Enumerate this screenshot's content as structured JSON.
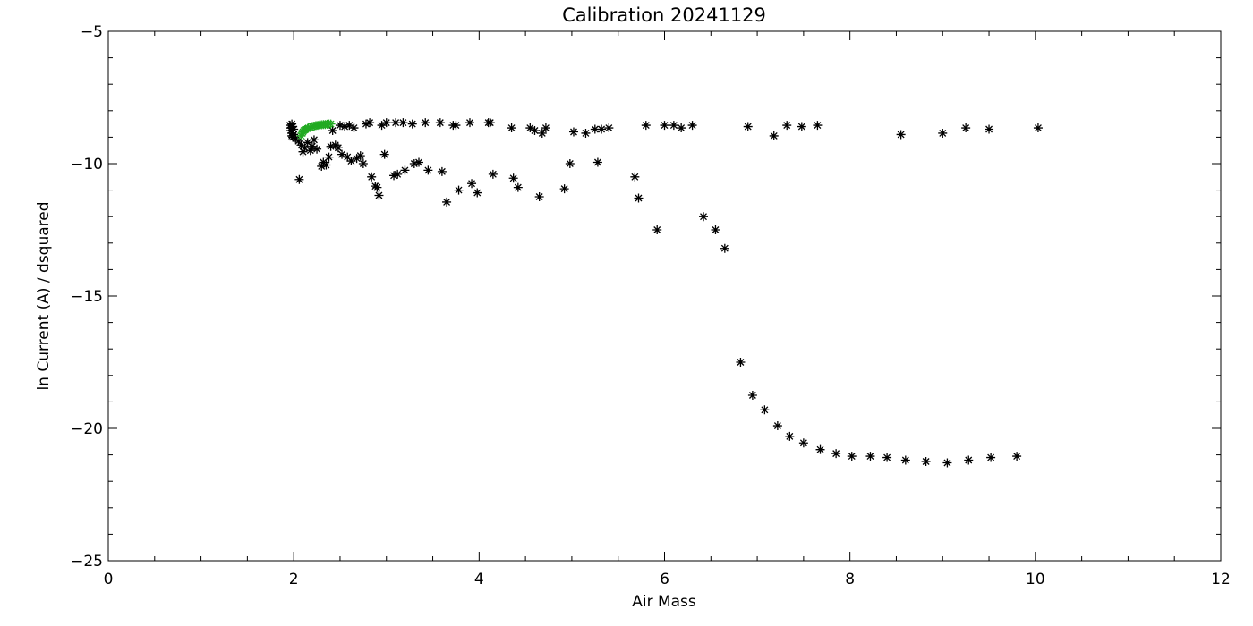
{
  "chart_data": {
    "type": "scatter",
    "title": "Calibration 20241129",
    "xlabel": "Air Mass",
    "ylabel": "ln Current (A) / dsquared",
    "xlim": [
      0,
      12
    ],
    "ylim": [
      -25,
      -5
    ],
    "x_ticks": [
      0,
      2,
      4,
      6,
      8,
      10,
      12
    ],
    "y_ticks": [
      -25,
      -20,
      -15,
      -10,
      -5
    ],
    "x_tick_labels": [
      "0",
      "2",
      "4",
      "6",
      "8",
      "10",
      "12"
    ],
    "y_tick_labels": [
      "−25",
      "−20",
      "−15",
      "−10",
      "−5"
    ],
    "grid": false,
    "marker": "asterisk",
    "series": [
      {
        "color": "#000000",
        "points": [
          [
            1.96,
            -8.55
          ],
          [
            1.97,
            -8.65
          ],
          [
            1.97,
            -8.75
          ],
          [
            1.98,
            -8.85
          ],
          [
            1.98,
            -8.95
          ],
          [
            1.99,
            -9.0
          ],
          [
            1.99,
            -8.6
          ],
          [
            2.0,
            -8.7
          ],
          [
            2.0,
            -8.9
          ],
          [
            1.98,
            -8.5
          ],
          [
            2.02,
            -9.05
          ],
          [
            2.05,
            -9.15
          ],
          [
            2.06,
            -10.6
          ],
          [
            2.08,
            -9.3
          ],
          [
            2.1,
            -9.55
          ],
          [
            2.12,
            -9.4
          ],
          [
            2.15,
            -9.2
          ],
          [
            2.18,
            -9.5
          ],
          [
            2.2,
            -9.35
          ],
          [
            2.22,
            -9.1
          ],
          [
            2.25,
            -9.45
          ],
          [
            2.3,
            -10.1
          ],
          [
            2.32,
            -9.95
          ],
          [
            2.35,
            -10.05
          ],
          [
            2.38,
            -9.75
          ],
          [
            2.4,
            -9.35
          ],
          [
            2.45,
            -9.3
          ],
          [
            2.48,
            -9.4
          ],
          [
            2.42,
            -8.75
          ],
          [
            2.5,
            -8.55
          ],
          [
            2.52,
            -9.65
          ],
          [
            2.55,
            -8.6
          ],
          [
            2.58,
            -9.75
          ],
          [
            2.6,
            -8.55
          ],
          [
            2.62,
            -9.9
          ],
          [
            2.65,
            -8.65
          ],
          [
            2.68,
            -9.8
          ],
          [
            2.72,
            -9.7
          ],
          [
            2.75,
            -10.0
          ],
          [
            2.78,
            -8.5
          ],
          [
            2.82,
            -8.45
          ],
          [
            2.84,
            -10.5
          ],
          [
            2.88,
            -10.85
          ],
          [
            2.9,
            -10.9
          ],
          [
            2.92,
            -11.2
          ],
          [
            2.95,
            -8.55
          ],
          [
            2.98,
            -9.65
          ],
          [
            3.0,
            -8.45
          ],
          [
            3.08,
            -10.45
          ],
          [
            3.1,
            -8.45
          ],
          [
            3.12,
            -10.4
          ],
          [
            3.18,
            -8.45
          ],
          [
            3.2,
            -10.25
          ],
          [
            3.28,
            -8.5
          ],
          [
            3.3,
            -10.0
          ],
          [
            3.35,
            -9.95
          ],
          [
            3.42,
            -8.45
          ],
          [
            3.45,
            -10.25
          ],
          [
            3.58,
            -8.45
          ],
          [
            3.6,
            -10.3
          ],
          [
            3.65,
            -11.45
          ],
          [
            3.72,
            -8.55
          ],
          [
            3.75,
            -8.55
          ],
          [
            3.78,
            -11.0
          ],
          [
            3.9,
            -8.45
          ],
          [
            3.92,
            -10.75
          ],
          [
            3.98,
            -11.1
          ],
          [
            4.1,
            -8.45
          ],
          [
            4.12,
            -8.45
          ],
          [
            4.15,
            -10.4
          ],
          [
            4.35,
            -8.65
          ],
          [
            4.37,
            -10.55
          ],
          [
            4.42,
            -10.9
          ],
          [
            4.55,
            -8.65
          ],
          [
            4.6,
            -8.75
          ],
          [
            4.65,
            -11.25
          ],
          [
            4.68,
            -8.85
          ],
          [
            4.72,
            -8.65
          ],
          [
            4.92,
            -10.95
          ],
          [
            4.98,
            -10.0
          ],
          [
            5.02,
            -8.8
          ],
          [
            5.15,
            -8.85
          ],
          [
            5.25,
            -8.7
          ],
          [
            5.28,
            -9.95
          ],
          [
            5.32,
            -8.7
          ],
          [
            5.4,
            -8.65
          ],
          [
            5.68,
            -10.5
          ],
          [
            5.72,
            -11.3
          ],
          [
            5.8,
            -8.55
          ],
          [
            5.92,
            -12.5
          ],
          [
            6.0,
            -8.55
          ],
          [
            6.1,
            -8.55
          ],
          [
            6.18,
            -8.65
          ],
          [
            6.3,
            -8.55
          ],
          [
            6.42,
            -12.0
          ],
          [
            6.55,
            -12.5
          ],
          [
            6.65,
            -13.2
          ],
          [
            6.82,
            -17.5
          ],
          [
            6.9,
            -8.6
          ],
          [
            6.95,
            -18.75
          ],
          [
            7.08,
            -19.3
          ],
          [
            7.18,
            -8.95
          ],
          [
            7.22,
            -19.9
          ],
          [
            7.32,
            -8.55
          ],
          [
            7.35,
            -20.3
          ],
          [
            7.48,
            -8.6
          ],
          [
            7.5,
            -20.55
          ],
          [
            7.65,
            -8.55
          ],
          [
            7.68,
            -20.8
          ],
          [
            7.85,
            -20.95
          ],
          [
            8.02,
            -21.05
          ],
          [
            8.22,
            -21.05
          ],
          [
            8.4,
            -21.1
          ],
          [
            8.55,
            -8.9
          ],
          [
            8.6,
            -21.2
          ],
          [
            8.82,
            -21.25
          ],
          [
            9.0,
            -8.85
          ],
          [
            9.05,
            -21.3
          ],
          [
            9.25,
            -8.65
          ],
          [
            9.28,
            -21.2
          ],
          [
            9.5,
            -8.7
          ],
          [
            9.52,
            -21.1
          ],
          [
            9.8,
            -21.05
          ],
          [
            10.03,
            -8.65
          ]
        ]
      },
      {
        "color": "#22aa22",
        "points": [
          [
            2.08,
            -8.95
          ],
          [
            2.09,
            -8.85
          ],
          [
            2.1,
            -8.8
          ],
          [
            2.11,
            -8.75
          ],
          [
            2.12,
            -8.72
          ],
          [
            2.13,
            -8.7
          ],
          [
            2.15,
            -8.68
          ],
          [
            2.16,
            -8.65
          ],
          [
            2.18,
            -8.62
          ],
          [
            2.2,
            -8.6
          ],
          [
            2.22,
            -8.58
          ],
          [
            2.24,
            -8.56
          ],
          [
            2.26,
            -8.55
          ],
          [
            2.28,
            -8.54
          ],
          [
            2.3,
            -8.53
          ],
          [
            2.32,
            -8.52
          ],
          [
            2.34,
            -8.52
          ],
          [
            2.36,
            -8.51
          ],
          [
            2.38,
            -8.5
          ],
          [
            2.4,
            -8.5
          ]
        ]
      }
    ]
  }
}
